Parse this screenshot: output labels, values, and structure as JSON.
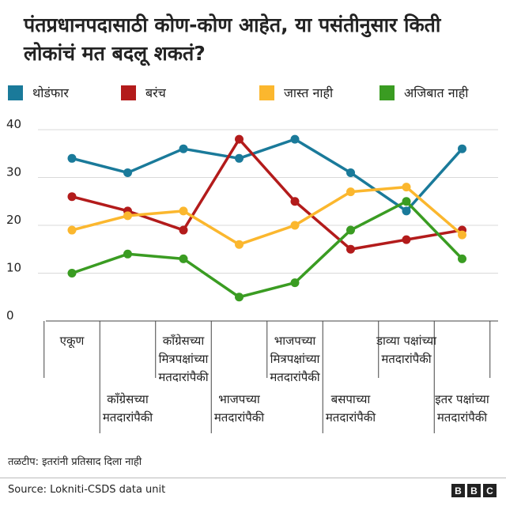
{
  "title": "पंतप्रधानपदासाठी कोण-कोण आहेत, या पसंतीनुसार किती लोकांचं मत बदलू शकतं?",
  "note": "तळटीप: इतरांनी प्रतिसाद दिला नाही",
  "source": "Source: Lokniti-CSDS data unit",
  "logo": [
    "B",
    "B",
    "C"
  ],
  "chart_data": {
    "type": "line",
    "title": "पंतप्रधानपदासाठी कोण-कोण आहेत, या पसंतीनुसार किती लोकांचं मत बदलू शकतं?",
    "categories": [
      [
        "एकूण"
      ],
      [
        "काँग्रेसच्या",
        "मतदारांपैकी"
      ],
      [
        "काँग्रेसच्या",
        "मित्रपक्षांच्या",
        "मतदारांपैकी"
      ],
      [
        "भाजपच्या",
        "मतदारांपैकी"
      ],
      [
        "भाजपच्या",
        "मित्रपक्षांच्या",
        "मतदारांपैकी"
      ],
      [
        "बसपाच्या",
        "मतदारांपैकी"
      ],
      [
        "डाव्या पक्षांच्या",
        "मतदारांपैकी"
      ],
      [
        "इतर पक्षांच्या",
        "मतदारांपैकी"
      ]
    ],
    "series": [
      {
        "name": "थोडंफार",
        "color": "#1a7a9a",
        "values": [
          34,
          31,
          36,
          34,
          38,
          31,
          23,
          36
        ]
      },
      {
        "name": "बरंच",
        "color": "#b31b1b",
        "values": [
          26,
          23,
          19,
          38,
          25,
          15,
          17,
          19
        ]
      },
      {
        "name": "जास्त नाही",
        "color": "#fbb72e",
        "values": [
          19,
          22,
          23,
          16,
          20,
          27,
          28,
          18
        ]
      },
      {
        "name": "अजिबात नाही",
        "color": "#3a9c22",
        "values": [
          10,
          14,
          13,
          5,
          8,
          19,
          25,
          13
        ]
      }
    ],
    "yticks": [
      0,
      10,
      20,
      30,
      40
    ],
    "ylim": [
      0,
      40
    ],
    "grid": true,
    "legend": "top"
  }
}
